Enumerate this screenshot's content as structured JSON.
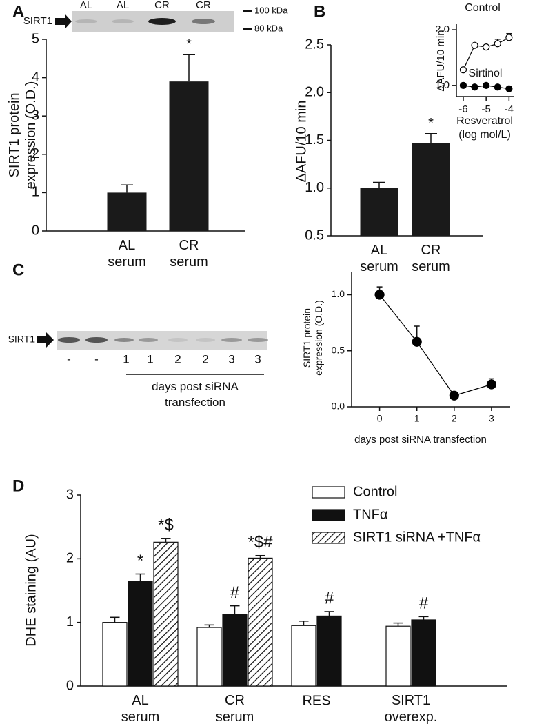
{
  "chart_data": [
    {
      "panel": "A",
      "type": "bar",
      "blot": {
        "protein": "SIRT1",
        "lanes": [
          "AL",
          "AL",
          "CR",
          "CR"
        ],
        "markers": [
          "100 kDa",
          "80 kDa"
        ]
      },
      "categories": [
        "AL serum",
        "CR serum"
      ],
      "values": [
        1.0,
        3.9
      ],
      "errors": [
        0.2,
        0.7
      ],
      "color": "#1a1a1a",
      "ylabel": "SIRT1 protein expression (O.D.)",
      "ylim": [
        0,
        5
      ],
      "yticks": [
        0,
        1,
        2,
        3,
        4,
        5
      ],
      "annotations": [
        {
          "text": "*",
          "index": 1
        }
      ]
    },
    {
      "panel": "B",
      "type": "bar",
      "categories": [
        "AL serum",
        "CR serum"
      ],
      "values": [
        1.0,
        1.47
      ],
      "errors": [
        0.06,
        0.1
      ],
      "color": "#1a1a1a",
      "ylabel": "ΔAFU/10 min",
      "ylim": [
        0.5,
        2.5
      ],
      "yticks": [
        0.5,
        {
          "value": 1,
          "label": "1.0"
        },
        1.5,
        {
          "value": 2,
          "label": "2.0"
        },
        2.5
      ],
      "annotations": [
        {
          "text": "*",
          "index": 1
        }
      ]
    },
    {
      "type": "line",
      "x": [
        -6,
        -5.5,
        -5,
        -4.5,
        -4
      ],
      "series": [
        {
          "name": "Control",
          "color": "#000000",
          "marker_fill": "#ffffff",
          "values": [
            1.28,
            1.72,
            1.69,
            1.75,
            1.86
          ],
          "errors": [
            0.03,
            0.03,
            0.03,
            0.08,
            0.07
          ]
        },
        {
          "name": "Sirtinol",
          "color": "#000000",
          "marker_fill": "#000000",
          "values": [
            1.0,
            0.97,
            1.0,
            0.97,
            0.94
          ],
          "errors": [
            0.02,
            0.02,
            0.02,
            0.02,
            0.03
          ]
        }
      ],
      "xlabel": "Resveratrol (log mol/L)",
      "ylabel": "ΔAFU/10 min",
      "xlim": [
        -6.3,
        -3.8
      ],
      "xticks": [
        -6,
        -5,
        -4
      ],
      "ylim": [
        0.8,
        2.1
      ],
      "yticks": [
        {
          "value": 1,
          "label": "1.0"
        },
        {
          "value": 2,
          "label": "2.0"
        }
      ]
    },
    {
      "panel": "C",
      "type": "line",
      "blot": {
        "protein": "SIRT1",
        "lanes": [
          "-",
          "-",
          "1",
          "1",
          "2",
          "2",
          "3",
          "3"
        ],
        "caption": "days post siRNA transfection"
      },
      "x": [
        0,
        1,
        2,
        3
      ],
      "series": [
        {
          "color": "#000000",
          "marker_fill": "#000000",
          "values": [
            1.0,
            0.58,
            0.1,
            0.2
          ],
          "errors": [
            0.07,
            0.14,
            null,
            0.05
          ]
        }
      ],
      "xlabel": "days post siRNA transfection",
      "ylabel": "SIRT1 protein expression (O.D.)",
      "xlim": [
        -0.75,
        3.5
      ],
      "xticks": [
        0,
        1,
        2,
        3
      ],
      "ylim": [
        0,
        1.2
      ],
      "yticks": [
        {
          "value": 0,
          "label": "0.0"
        },
        0.5,
        {
          "value": 1,
          "label": "1.0"
        }
      ]
    },
    {
      "panel": "D",
      "type": "grouped_bar",
      "categories": [
        "AL serum",
        "CR serum",
        "RES",
        "SIRT1 overexp."
      ],
      "series": [
        {
          "name": "Control",
          "color": "#ffffff",
          "values": [
            1.0,
            0.92,
            0.95,
            0.94
          ],
          "errors": [
            0.08,
            0.04,
            0.07,
            0.05
          ]
        },
        {
          "name": "TNFα",
          "color": "#111111",
          "values": [
            1.65,
            1.12,
            1.1,
            1.04
          ],
          "errors": [
            0.11,
            0.14,
            0.07,
            0.05
          ]
        },
        {
          "name": "SIRT1 siRNA +TNFα",
          "color": "#ffffff",
          "pattern": "hatch",
          "values": [
            2.26,
            2.01,
            null,
            null
          ],
          "errors": [
            0.06,
            0.04,
            null,
            null
          ]
        }
      ],
      "ylabel": "DHE staining (AU)",
      "ylim": [
        0,
        3
      ],
      "yticks": [
        0,
        1,
        2,
        3
      ],
      "annotations": [
        {
          "text": "*",
          "series": 1,
          "index": 0
        },
        {
          "text": "*$",
          "series": 2,
          "index": 0
        },
        {
          "text": "#",
          "series": 1,
          "index": 1
        },
        {
          "text": "*$#",
          "series": 2,
          "index": 1
        },
        {
          "text": "#",
          "series": 1,
          "index": 2
        },
        {
          "text": "#",
          "series": 1,
          "index": 3
        }
      ]
    }
  ]
}
